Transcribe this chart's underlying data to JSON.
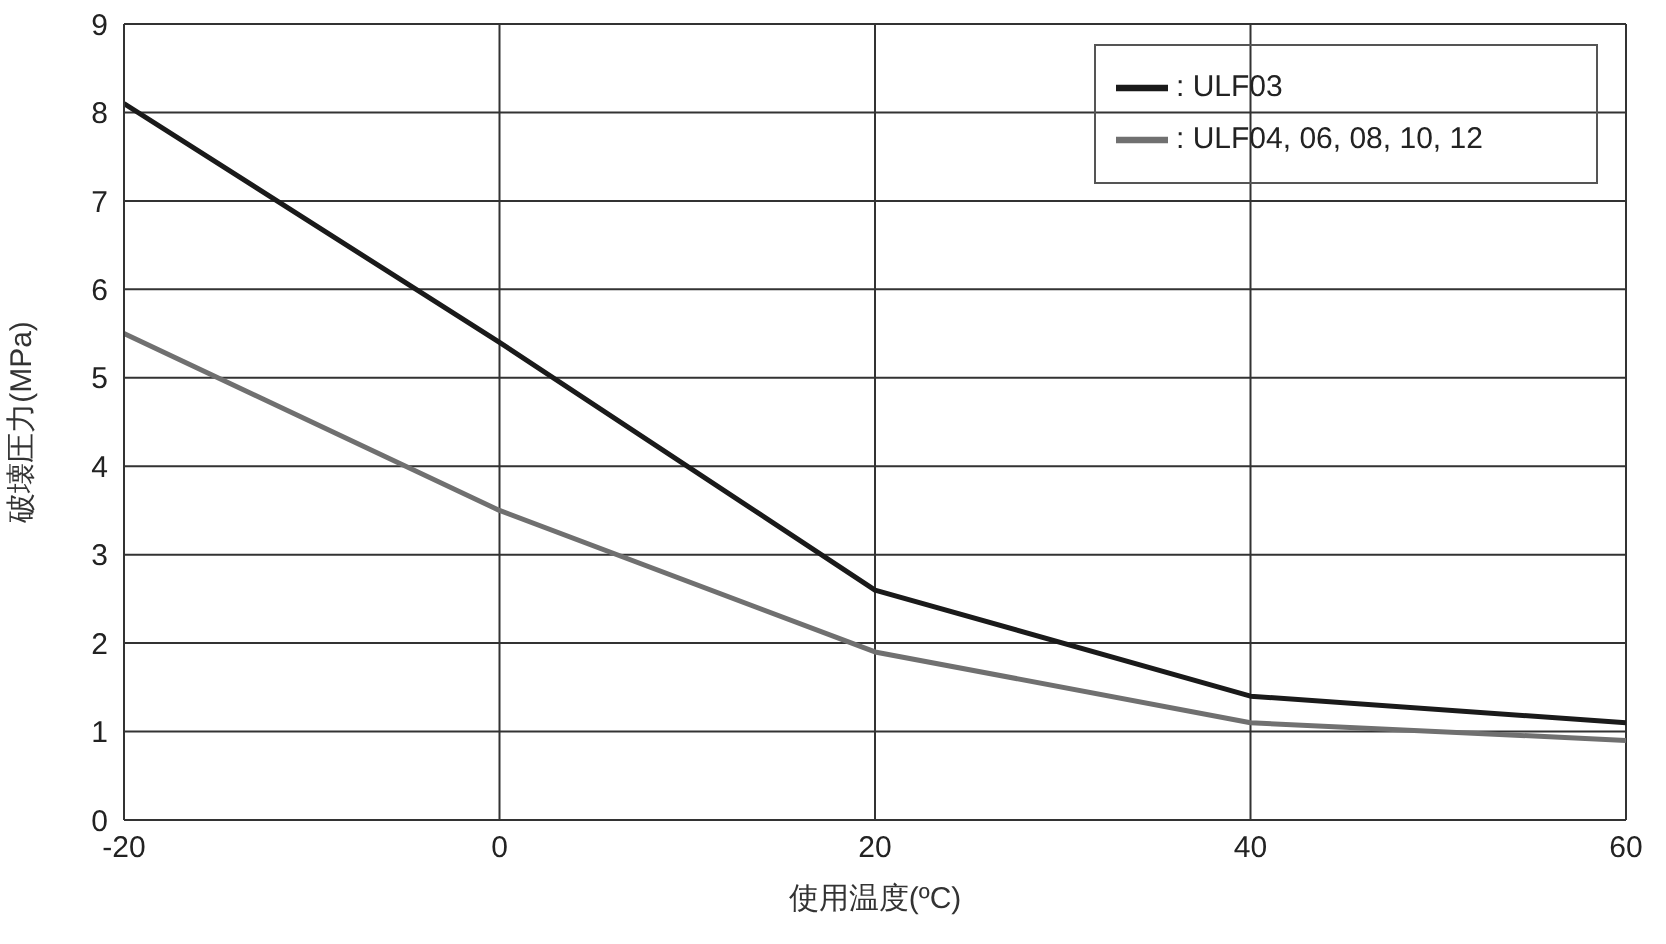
{
  "chart_data": {
    "type": "line",
    "xlabel": "使用温度(ºC)",
    "ylabel": "破壊圧力(MPa)",
    "x": [
      -20,
      0,
      20,
      40,
      60
    ],
    "series": [
      {
        "name": ": ULF03",
        "color": "#1a1a1a",
        "values": [
          8.1,
          5.4,
          2.6,
          1.4,
          1.1
        ]
      },
      {
        "name": ": ULF04, 06, 08, 10, 12",
        "color": "#707070",
        "values": [
          5.5,
          3.5,
          1.9,
          1.1,
          0.9
        ]
      }
    ],
    "xlim": [
      -20,
      60
    ],
    "xticks": [
      -20,
      0,
      20,
      40,
      60
    ],
    "ylim": [
      0,
      9
    ],
    "yticks": [
      0,
      1,
      2,
      3,
      4,
      5,
      6,
      7,
      8,
      9
    ],
    "grid": true,
    "legend": "top right",
    "marker": "none",
    "line_style": "solid"
  }
}
